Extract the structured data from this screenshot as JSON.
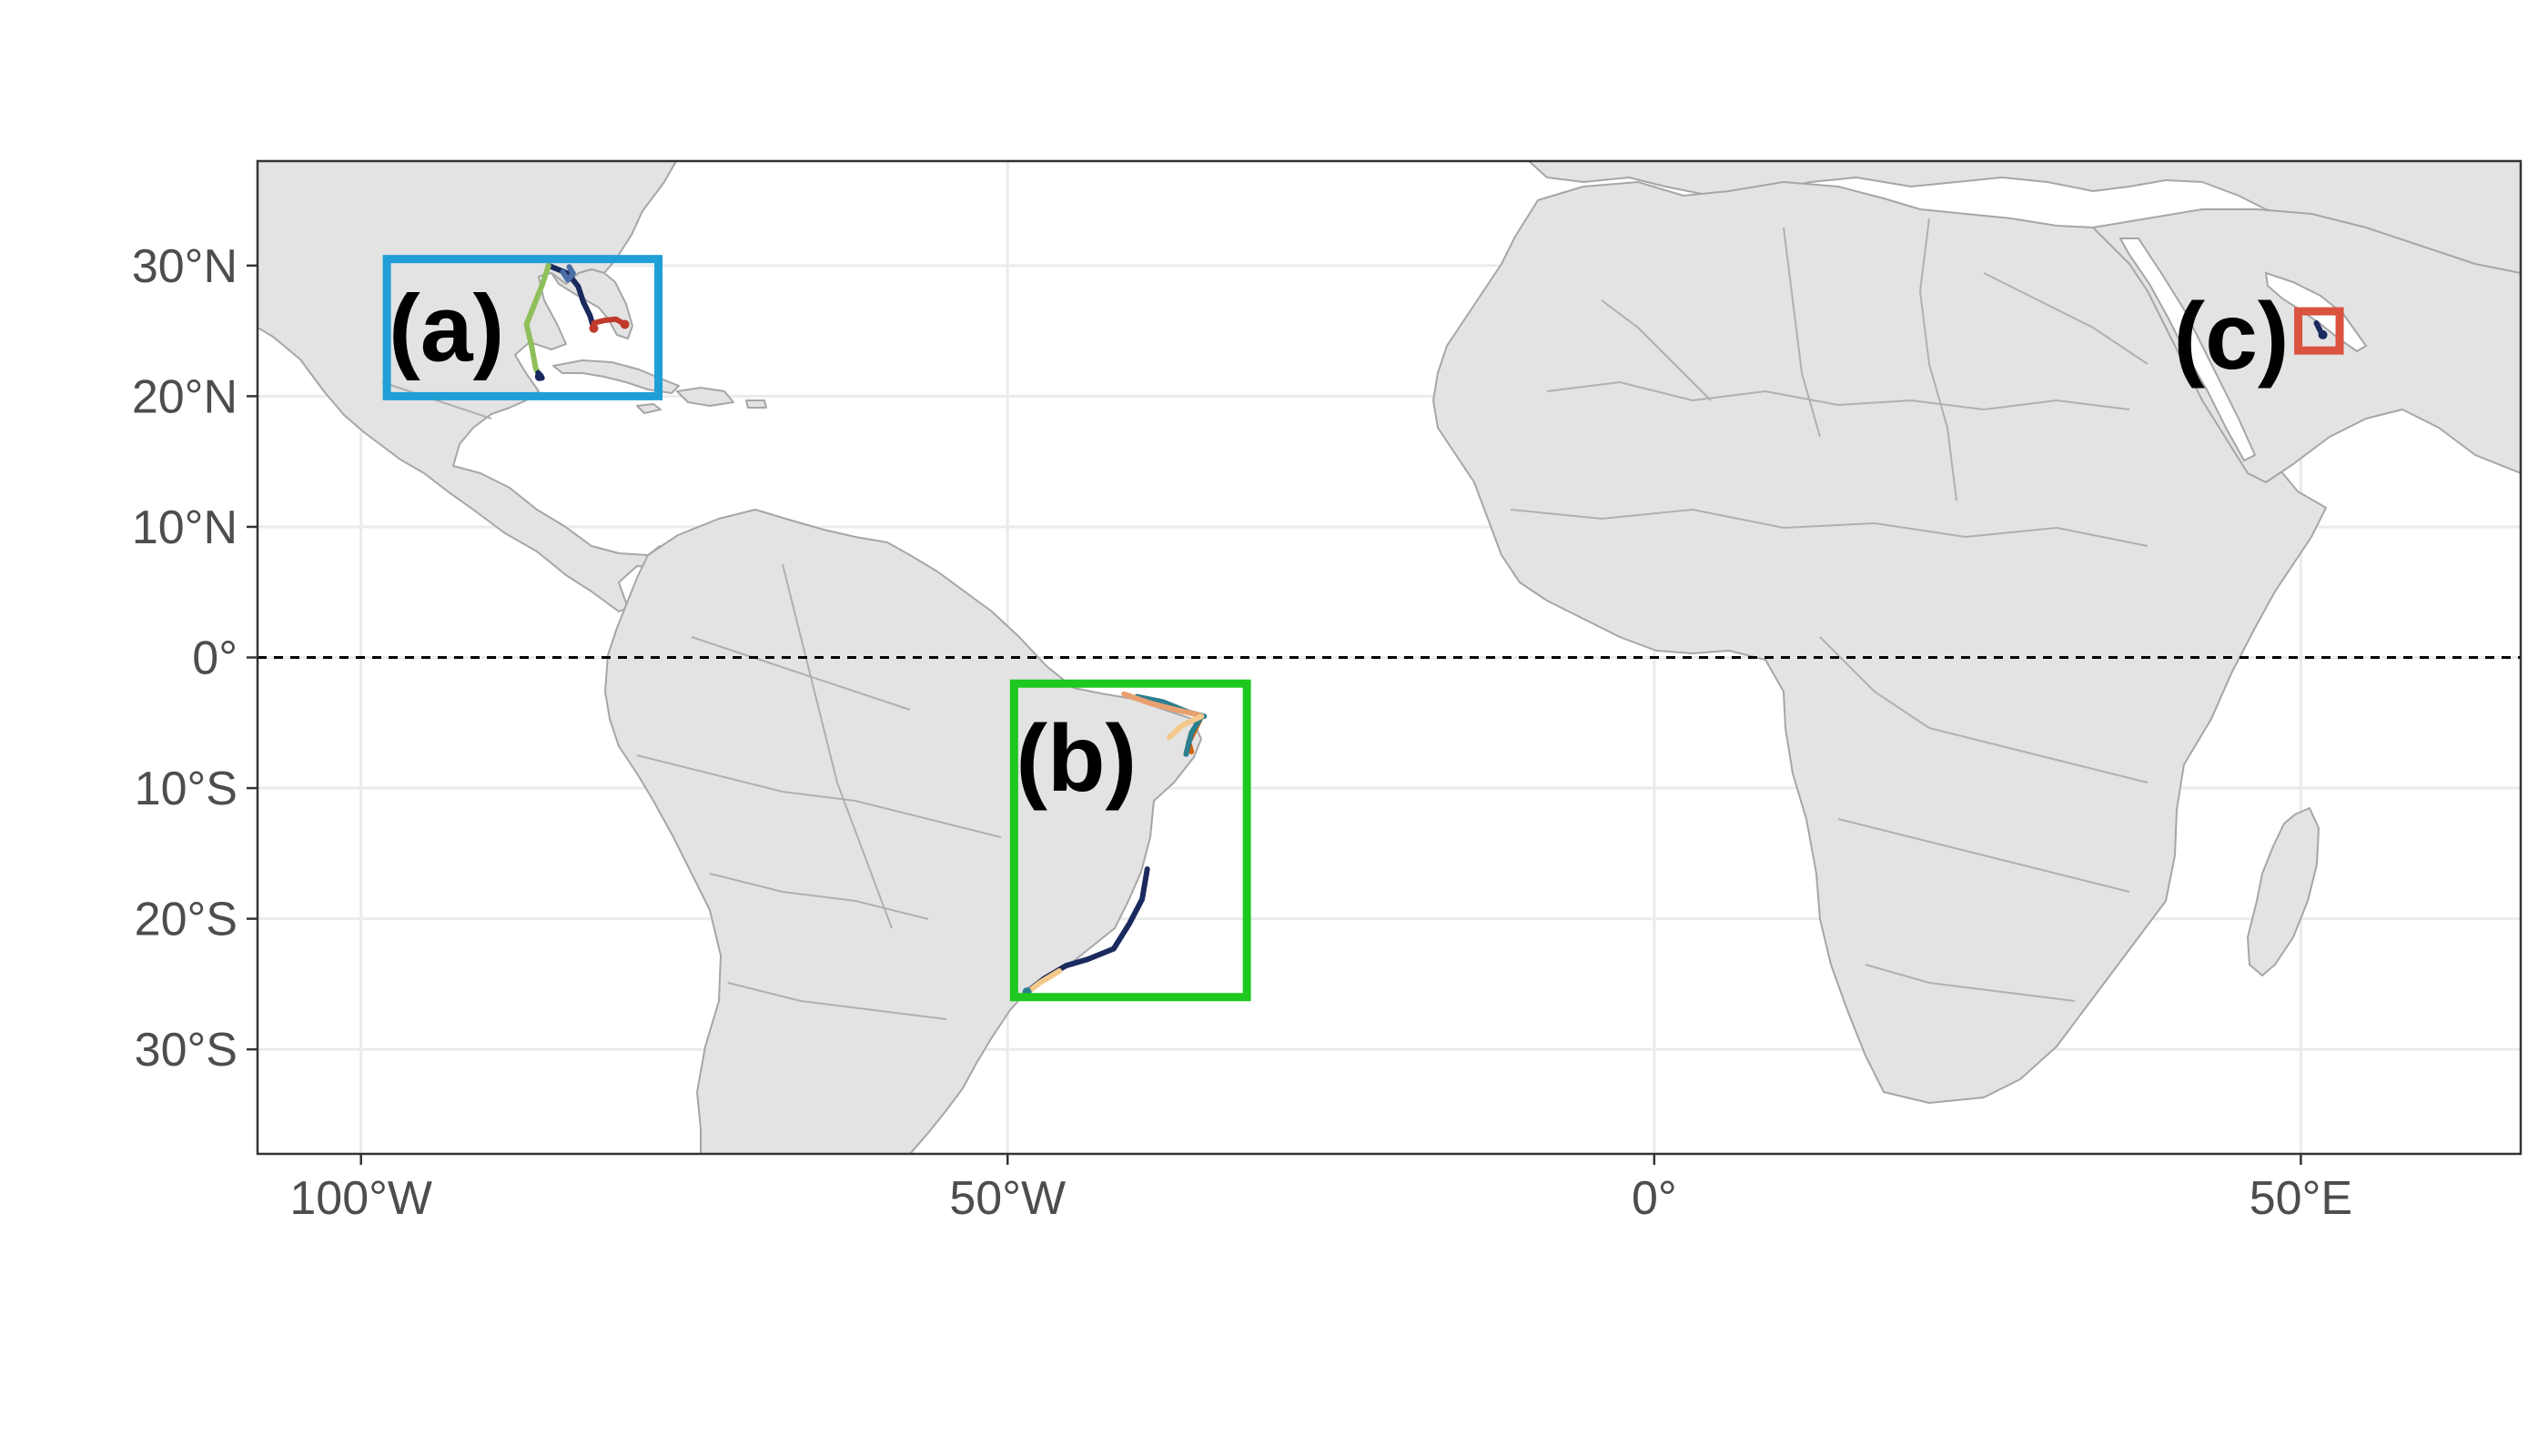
{
  "map": {
    "extent": {
      "lon": [
        -108,
        67
      ],
      "lat": [
        -38,
        38
      ]
    },
    "x_ticks": [
      {
        "lon": -100,
        "label": "100°W"
      },
      {
        "lon": -50,
        "label": "50°W"
      },
      {
        "lon": 0,
        "label": "0°"
      },
      {
        "lon": 50,
        "label": "50°E"
      }
    ],
    "y_ticks": [
      {
        "lat": 30,
        "label": "30°N"
      },
      {
        "lat": 20,
        "label": "20°N"
      },
      {
        "lat": 10,
        "label": "10°N"
      },
      {
        "lat": 0,
        "label": "0°"
      },
      {
        "lat": -10,
        "label": "10°S"
      },
      {
        "lat": -20,
        "label": "20°S"
      },
      {
        "lat": -30,
        "label": "30°S"
      }
    ],
    "equator": {
      "lat": 0,
      "style": "dashed"
    },
    "regions": [
      {
        "id": "a",
        "label": "(a)",
        "color": "#1f9fd6",
        "lon": [
          -98,
          -77
        ],
        "lat": [
          20,
          30.5
        ]
      },
      {
        "id": "b",
        "label": "(b)",
        "color": "#1ec81e",
        "lon": [
          -49.5,
          -31.5
        ],
        "lat": [
          -26,
          -2
        ]
      },
      {
        "id": "c",
        "label": "(c)",
        "color": "#d9533f",
        "lon": [
          49.8,
          53
        ],
        "lat": [
          23.5,
          26.5
        ]
      }
    ],
    "track_colors": [
      "#1b2a5e",
      "#8fbf5a",
      "#e8a070",
      "#2b7f8f",
      "#c0392b",
      "#4a6fa5",
      "#f2c98a",
      "#d95f02"
    ]
  }
}
